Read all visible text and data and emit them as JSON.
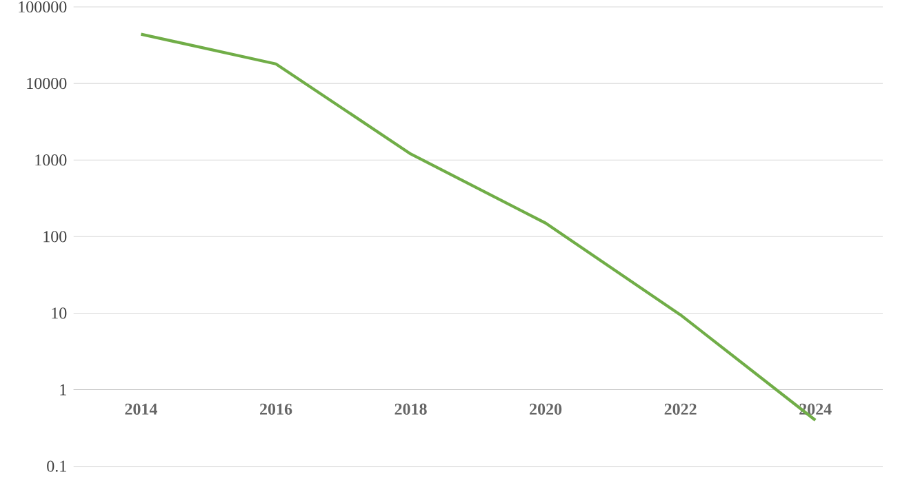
{
  "chart_data": {
    "type": "line",
    "categories": [
      "2014",
      "2016",
      "2018",
      "2020",
      "2022",
      "2024"
    ],
    "series": [
      {
        "color": "#70ad47",
        "values": [
          44000,
          18000,
          1200,
          150,
          9.5,
          0.4
        ]
      }
    ],
    "log": "y",
    "ylim": [
      0.1,
      100000
    ],
    "yticks": [
      0.1,
      1,
      10,
      100,
      1000,
      10000,
      100000
    ],
    "grid": "y",
    "marker": "none",
    "line_style": "solid"
  }
}
